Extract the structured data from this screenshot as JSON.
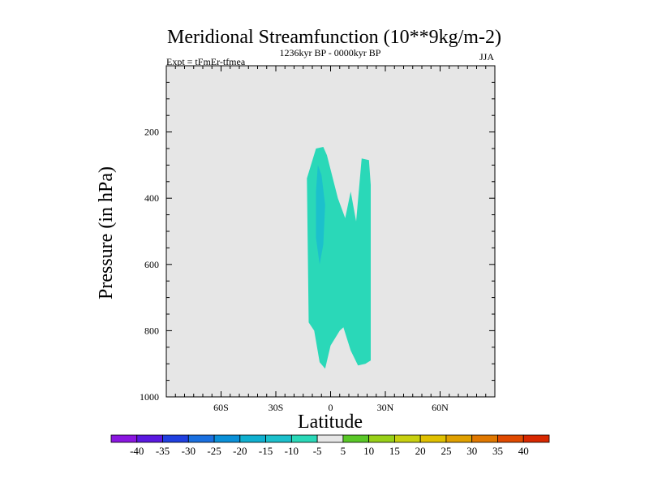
{
  "chart_data": {
    "type": "contour",
    "title": "Meridional Streamfunction (10**9kg/m-2)",
    "left_label": "Expt = tFmEr-tfmea",
    "center_label": "1236kyr BP - 0000kyr BP",
    "right_label": "JJA",
    "xlabel": "Latitude",
    "ylabel": "Pressure (in hPa)",
    "xlim": [
      -90,
      90
    ],
    "ylim": [
      1000,
      0
    ],
    "x_ticks": [
      {
        "value": -60,
        "label": "60S"
      },
      {
        "value": -30,
        "label": "30S"
      },
      {
        "value": 0,
        "label": "0"
      },
      {
        "value": 30,
        "label": "30N"
      },
      {
        "value": 60,
        "label": "60N"
      }
    ],
    "y_ticks": [
      {
        "value": 200,
        "label": "200"
      },
      {
        "value": 400,
        "label": "400"
      },
      {
        "value": 600,
        "label": "600"
      },
      {
        "value": 800,
        "label": "800"
      },
      {
        "value": 1000,
        "label": "1000"
      }
    ],
    "background_level": "-5 to 5",
    "regions": [
      {
        "name": "negative-cell-outer",
        "range": "-10 to -5",
        "color": "#2ad8b8",
        "points": [
          [
            -13,
            340
          ],
          [
            -8,
            250
          ],
          [
            -4,
            245
          ],
          [
            -2,
            270
          ],
          [
            4,
            400
          ],
          [
            8,
            460
          ],
          [
            11,
            380
          ],
          [
            14,
            470
          ],
          [
            17,
            280
          ],
          [
            21,
            285
          ],
          [
            22,
            360
          ],
          [
            22,
            890
          ],
          [
            19,
            900
          ],
          [
            15,
            905
          ],
          [
            11,
            860
          ],
          [
            7,
            790
          ],
          [
            5,
            800
          ],
          [
            0,
            845
          ],
          [
            -3,
            915
          ],
          [
            -6,
            895
          ],
          [
            -9,
            800
          ],
          [
            -12,
            775
          ]
        ]
      },
      {
        "name": "negative-cell-core",
        "range": "-15 to -10",
        "color": "#1cc0cc",
        "points": [
          [
            -7,
            300
          ],
          [
            -5,
            330
          ],
          [
            -3,
            420
          ],
          [
            -4,
            540
          ],
          [
            -6,
            600
          ],
          [
            -8,
            520
          ],
          [
            -8,
            380
          ]
        ]
      }
    ],
    "colorbar": {
      "labels": [
        "-40",
        "-35",
        "-30",
        "-25",
        "-20",
        "-15",
        "-10",
        "-5",
        "5",
        "10",
        "15",
        "20",
        "25",
        "30",
        "35",
        "40"
      ],
      "colors": [
        "#8a16e0",
        "#5a18e0",
        "#2040e0",
        "#1a70e0",
        "#0a90d8",
        "#10b0d0",
        "#1cc0cc",
        "#2ad8b8",
        "#e6e6e6",
        "#5ac828",
        "#98d018",
        "#c8d010",
        "#e0c000",
        "#e0a000",
        "#e07800",
        "#e04a00",
        "#d82800"
      ]
    }
  }
}
